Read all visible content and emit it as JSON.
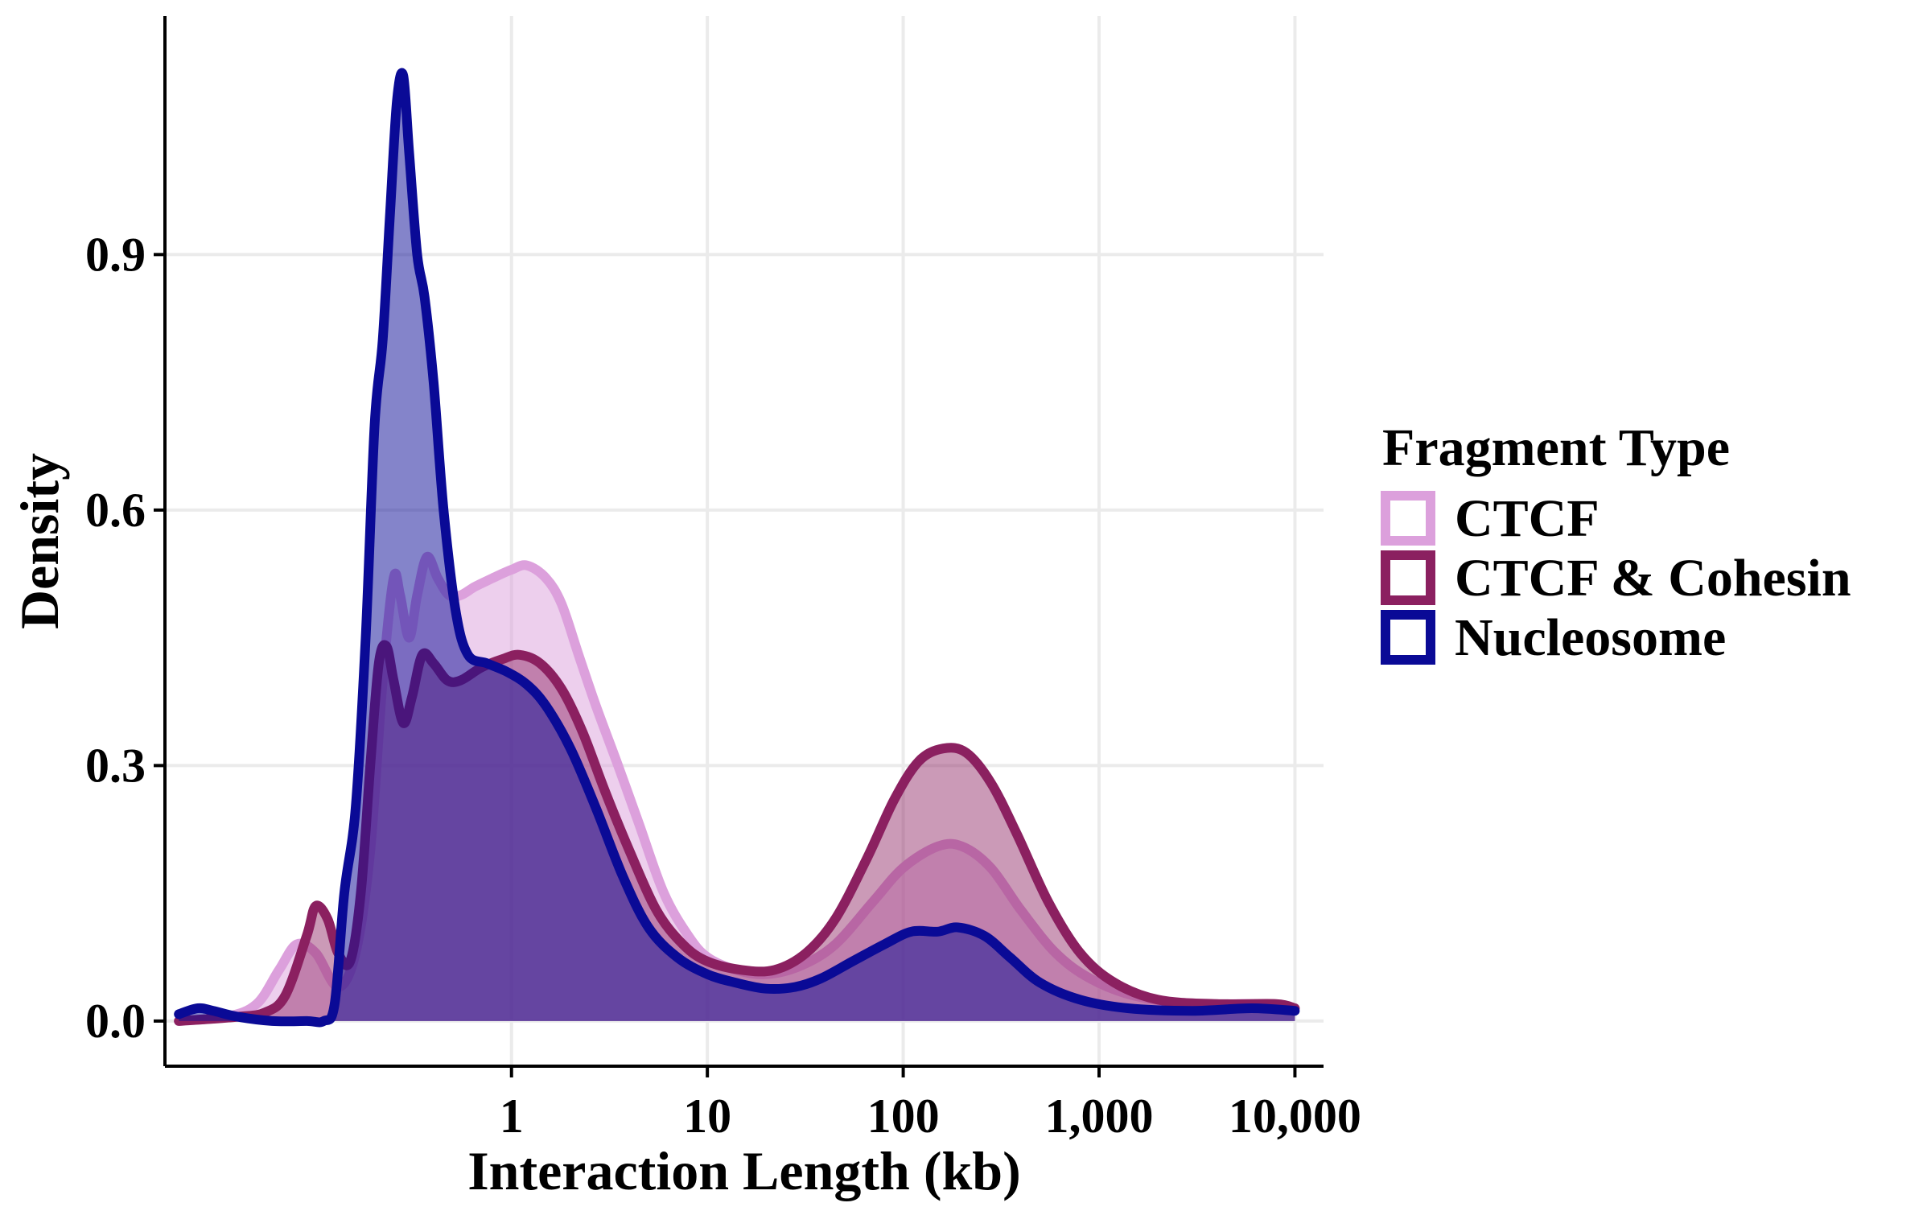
{
  "chart_data": {
    "type": "area",
    "xlabel": "Interaction Length (kb)",
    "ylabel": "Density",
    "x_scale": "log10",
    "xlim": [
      0.017,
      14000
    ],
    "ylim": [
      -0.053,
      1.18
    ],
    "x_ticks": [
      {
        "value": 1,
        "label": "1"
      },
      {
        "value": 10,
        "label": "10"
      },
      {
        "value": 100,
        "label": "100"
      },
      {
        "value": 1000,
        "label": "1,000"
      },
      {
        "value": 10000,
        "label": "10,000"
      }
    ],
    "y_ticks": [
      {
        "value": 0.0,
        "label": "0.0"
      },
      {
        "value": 0.3,
        "label": "0.3"
      },
      {
        "value": 0.6,
        "label": "0.6"
      },
      {
        "value": 0.9,
        "label": "0.9"
      }
    ],
    "grid": true,
    "legend": {
      "title": "Fragment Type",
      "position": "right",
      "entries": [
        "CTCF",
        "CTCF & Cohesin",
        "Nucleosome"
      ]
    },
    "series": [
      {
        "name": "CTCF",
        "line_color": "#dca0dc",
        "fill_color": "#dca0dc",
        "fill_opacity": 0.5,
        "points": [
          [
            0.02,
            0.0
          ],
          [
            0.035,
            0.005
          ],
          [
            0.05,
            0.02
          ],
          [
            0.065,
            0.06
          ],
          [
            0.08,
            0.09
          ],
          [
            0.1,
            0.08
          ],
          [
            0.13,
            0.04
          ],
          [
            0.16,
            0.08
          ],
          [
            0.19,
            0.2
          ],
          [
            0.22,
            0.4
          ],
          [
            0.25,
            0.52
          ],
          [
            0.27,
            0.5
          ],
          [
            0.3,
            0.45
          ],
          [
            0.33,
            0.5
          ],
          [
            0.37,
            0.545
          ],
          [
            0.42,
            0.52
          ],
          [
            0.48,
            0.5
          ],
          [
            0.55,
            0.5
          ],
          [
            0.65,
            0.51
          ],
          [
            0.8,
            0.52
          ],
          [
            1.0,
            0.53
          ],
          [
            1.2,
            0.535
          ],
          [
            1.5,
            0.52
          ],
          [
            1.8,
            0.49
          ],
          [
            2.2,
            0.43
          ],
          [
            2.7,
            0.37
          ],
          [
            3.5,
            0.3
          ],
          [
            4.5,
            0.23
          ],
          [
            6.0,
            0.15
          ],
          [
            8.0,
            0.1
          ],
          [
            10.0,
            0.075
          ],
          [
            14.0,
            0.06
          ],
          [
            20.0,
            0.055
          ],
          [
            30.0,
            0.065
          ],
          [
            45.0,
            0.09
          ],
          [
            70.0,
            0.14
          ],
          [
            100.0,
            0.18
          ],
          [
            150.0,
            0.205
          ],
          [
            200.0,
            0.205
          ],
          [
            280.0,
            0.18
          ],
          [
            400.0,
            0.13
          ],
          [
            600.0,
            0.08
          ],
          [
            900.0,
            0.05
          ],
          [
            1500.0,
            0.03
          ],
          [
            3000.0,
            0.02
          ],
          [
            6000.0,
            0.02
          ],
          [
            10000.0,
            0.015
          ]
        ]
      },
      {
        "name": "CTCF & Cohesin",
        "line_color": "#8b2060",
        "fill_color": "#8b2060",
        "fill_opacity": 0.45,
        "points": [
          [
            0.02,
            0.0
          ],
          [
            0.04,
            0.005
          ],
          [
            0.055,
            0.01
          ],
          [
            0.07,
            0.03
          ],
          [
            0.09,
            0.1
          ],
          [
            0.1,
            0.135
          ],
          [
            0.115,
            0.12
          ],
          [
            0.13,
            0.08
          ],
          [
            0.15,
            0.07
          ],
          [
            0.17,
            0.15
          ],
          [
            0.19,
            0.3
          ],
          [
            0.21,
            0.42
          ],
          [
            0.23,
            0.44
          ],
          [
            0.25,
            0.4
          ],
          [
            0.28,
            0.35
          ],
          [
            0.31,
            0.38
          ],
          [
            0.35,
            0.43
          ],
          [
            0.4,
            0.42
          ],
          [
            0.47,
            0.4
          ],
          [
            0.55,
            0.4
          ],
          [
            0.7,
            0.415
          ],
          [
            0.9,
            0.425
          ],
          [
            1.1,
            0.43
          ],
          [
            1.4,
            0.42
          ],
          [
            1.8,
            0.39
          ],
          [
            2.3,
            0.34
          ],
          [
            3.0,
            0.27
          ],
          [
            4.0,
            0.2
          ],
          [
            5.5,
            0.13
          ],
          [
            7.5,
            0.09
          ],
          [
            10.0,
            0.07
          ],
          [
            15.0,
            0.06
          ],
          [
            22.0,
            0.06
          ],
          [
            32.0,
            0.08
          ],
          [
            45.0,
            0.12
          ],
          [
            65.0,
            0.19
          ],
          [
            90.0,
            0.26
          ],
          [
            120.0,
            0.305
          ],
          [
            160.0,
            0.32
          ],
          [
            210.0,
            0.315
          ],
          [
            280.0,
            0.28
          ],
          [
            380.0,
            0.22
          ],
          [
            550.0,
            0.14
          ],
          [
            800.0,
            0.08
          ],
          [
            1200.0,
            0.045
          ],
          [
            2000.0,
            0.025
          ],
          [
            4000.0,
            0.02
          ],
          [
            8000.0,
            0.02
          ],
          [
            10000.0,
            0.015
          ]
        ]
      },
      {
        "name": "Nucleosome",
        "line_color": "#0a0a96",
        "fill_color": "#0a0a96",
        "fill_opacity": 0.5,
        "points": [
          [
            0.02,
            0.008
          ],
          [
            0.025,
            0.015
          ],
          [
            0.03,
            0.012
          ],
          [
            0.04,
            0.005
          ],
          [
            0.06,
            0.0
          ],
          [
            0.09,
            0.0
          ],
          [
            0.11,
            0.0
          ],
          [
            0.125,
            0.02
          ],
          [
            0.14,
            0.15
          ],
          [
            0.16,
            0.25
          ],
          [
            0.18,
            0.45
          ],
          [
            0.2,
            0.7
          ],
          [
            0.22,
            0.8
          ],
          [
            0.24,
            0.95
          ],
          [
            0.26,
            1.08
          ],
          [
            0.28,
            1.11
          ],
          [
            0.3,
            1.02
          ],
          [
            0.33,
            0.9
          ],
          [
            0.36,
            0.85
          ],
          [
            0.4,
            0.75
          ],
          [
            0.45,
            0.6
          ],
          [
            0.52,
            0.48
          ],
          [
            0.6,
            0.43
          ],
          [
            0.75,
            0.42
          ],
          [
            0.95,
            0.41
          ],
          [
            1.2,
            0.395
          ],
          [
            1.5,
            0.37
          ],
          [
            2.0,
            0.32
          ],
          [
            2.7,
            0.25
          ],
          [
            3.7,
            0.17
          ],
          [
            5.0,
            0.11
          ],
          [
            7.0,
            0.075
          ],
          [
            10.0,
            0.055
          ],
          [
            14.0,
            0.045
          ],
          [
            20.0,
            0.038
          ],
          [
            28.0,
            0.04
          ],
          [
            38.0,
            0.05
          ],
          [
            55.0,
            0.07
          ],
          [
            80.0,
            0.09
          ],
          [
            110.0,
            0.105
          ],
          [
            150.0,
            0.105
          ],
          [
            190.0,
            0.11
          ],
          [
            260.0,
            0.1
          ],
          [
            350.0,
            0.075
          ],
          [
            500.0,
            0.045
          ],
          [
            800.0,
            0.025
          ],
          [
            1400.0,
            0.015
          ],
          [
            3000.0,
            0.012
          ],
          [
            6000.0,
            0.015
          ],
          [
            10000.0,
            0.012
          ]
        ]
      }
    ]
  }
}
